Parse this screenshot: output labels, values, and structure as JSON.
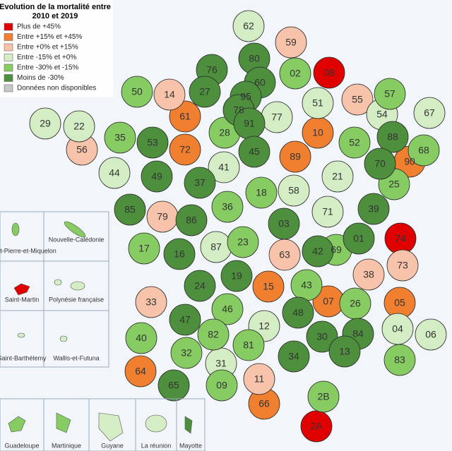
{
  "title": "Evolution de la mortalité entre 2010 et 2019",
  "legend": [
    {
      "label": "Plus de +45%",
      "color": "#e00000",
      "departments": [
        "08",
        "74",
        "2A"
      ]
    },
    {
      "label": "Entre +15% et +45%",
      "color": "#f07f30",
      "departments": [
        "61",
        "72",
        "10",
        "89",
        "90",
        "15",
        "07",
        "05",
        "64",
        "66"
      ]
    },
    {
      "label": "Entre +0% et +15%",
      "color": "#f8c3ab",
      "departments": [
        "59",
        "14",
        "55",
        "56",
        "79",
        "63",
        "73",
        "38",
        "33",
        "11"
      ]
    },
    {
      "label": "Entre -15% et +0%",
      "color": "#d4edc4",
      "departments": [
        "62",
        "51",
        "67",
        "54",
        "29",
        "22",
        "77",
        "44",
        "41",
        "21",
        "58",
        "71",
        "87",
        "12",
        "04",
        "06",
        "31"
      ]
    },
    {
      "label": "Entre -30% et -15%",
      "color": "#86cc62",
      "departments": [
        "02",
        "50",
        "57",
        "35",
        "28",
        "52",
        "68",
        "18",
        "25",
        "36",
        "17",
        "23",
        "69",
        "43",
        "26",
        "46",
        "40",
        "82",
        "81",
        "83",
        "32",
        "09",
        "2B"
      ]
    },
    {
      "label": "Moins de -30%",
      "color": "#4e8f3e",
      "departments": [
        "80",
        "76",
        "60",
        "27",
        "95",
        "78",
        "91",
        "53",
        "45",
        "88",
        "70",
        "49",
        "37",
        "85",
        "86",
        "39",
        "03",
        "01",
        "16",
        "42",
        "24",
        "19",
        "48",
        "30",
        "84",
        "47",
        "34",
        "13",
        "65"
      ]
    },
    {
      "label": "Données non disponibles",
      "color": "#c8c8c8",
      "departments": []
    }
  ],
  "insets": [
    "Saint-Pierre-et-Miquelon",
    "Nouvelle-Calédonie",
    "Saint-Martin",
    "Polynésie française",
    "Saint-Barthélemy",
    "Wallis-et-Futuna",
    "Guadeloupe",
    "Martinique",
    "Guyane",
    "La réunion",
    "Mayotte"
  ]
}
